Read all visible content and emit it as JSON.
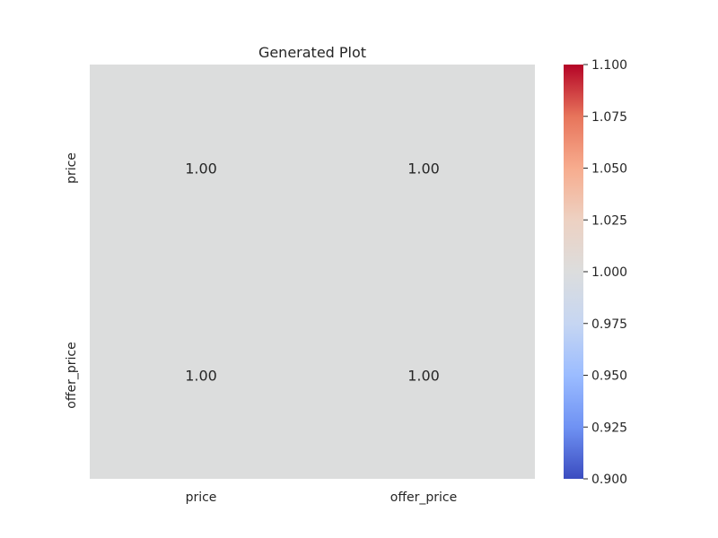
{
  "chart_data": {
    "type": "heatmap",
    "title": "Generated Plot",
    "x_categories": [
      "price",
      "offer_price"
    ],
    "y_categories": [
      "price",
      "offer_price"
    ],
    "values": [
      [
        1.0,
        1.0
      ],
      [
        1.0,
        1.0
      ]
    ],
    "cell_labels": [
      [
        "1.00",
        "1.00"
      ],
      [
        "1.00",
        "1.00"
      ]
    ],
    "colormap": "coolwarm",
    "cell_color": "#dcdddd",
    "colorbar": {
      "range": [
        0.9,
        1.1
      ],
      "ticks": [
        "1.100",
        "1.075",
        "1.050",
        "1.025",
        "1.000",
        "0.975",
        "0.950",
        "0.925",
        "0.900"
      ],
      "colors": [
        "#b40426",
        "#e7745b",
        "#f7ac8e",
        "#edd1c2",
        "#dcdddd",
        "#c6d6f2",
        "#9bbcff",
        "#6f92f3",
        "#3b4cc0"
      ]
    }
  }
}
